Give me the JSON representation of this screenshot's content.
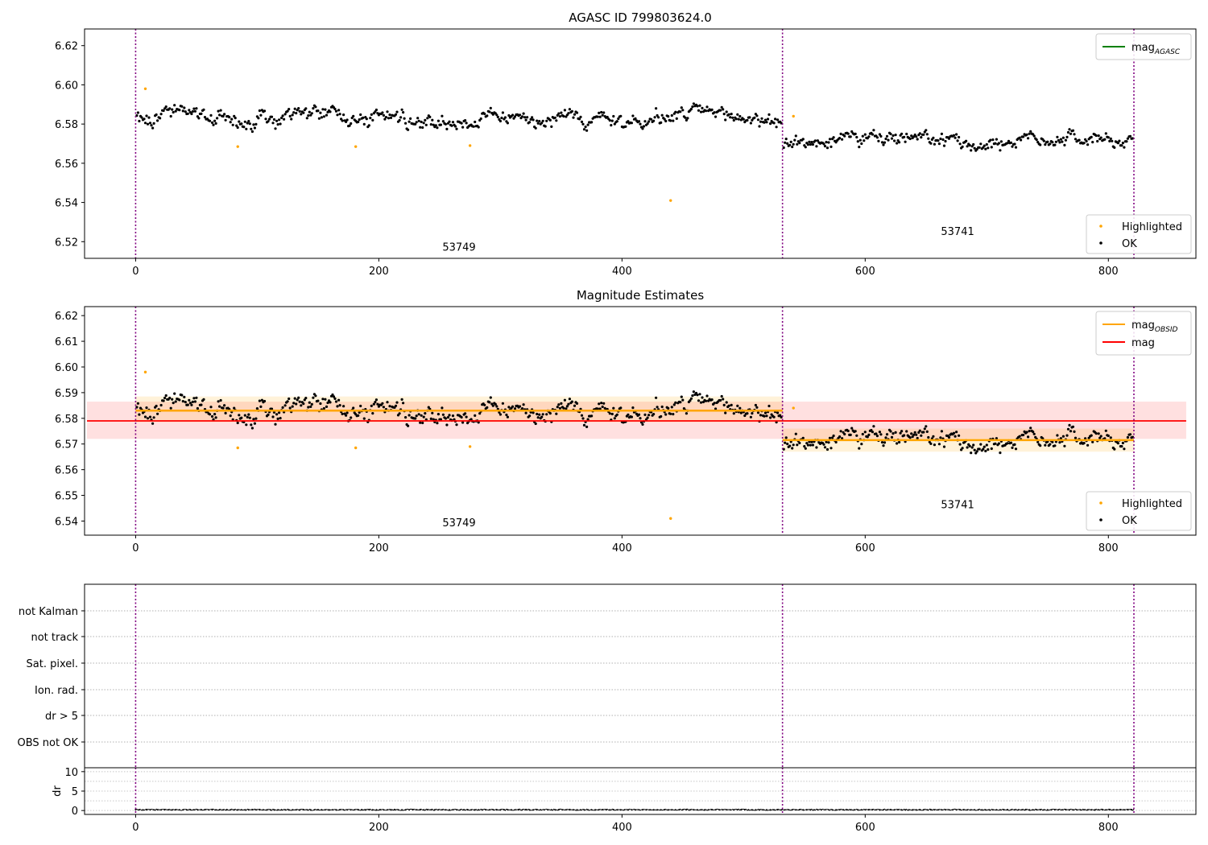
{
  "chart_data": [
    {
      "type": "scatter",
      "title": "AGASC ID 799803624.0",
      "xlim": [
        -42,
        872
      ],
      "ylim": [
        6.5115,
        6.6285
      ],
      "xticks": [
        0,
        200,
        400,
        600,
        800
      ],
      "yticks": [
        6.52,
        6.54,
        6.56,
        6.58,
        6.6,
        6.62
      ],
      "vlines": [
        0,
        532,
        821
      ],
      "segment_labels": [
        {
          "text": "53749",
          "x": 266,
          "y": 6.5155
        },
        {
          "text": "53741",
          "x": 676,
          "y": 6.5235
        }
      ],
      "legend_upper": [
        {
          "label": "mag",
          "sub": "AGASC",
          "color": "#008000"
        }
      ],
      "legend_lower": [
        {
          "label": "Highlighted",
          "color": "#ffa500"
        },
        {
          "label": "OK",
          "color": "#000000"
        }
      ],
      "highlighted": [
        [
          8,
          6.598
        ],
        [
          84,
          6.5685
        ],
        [
          181,
          6.5685
        ],
        [
          275,
          6.569
        ],
        [
          440,
          6.541
        ],
        [
          541,
          6.584
        ]
      ],
      "segments": [
        {
          "x0": 0,
          "x1": 532,
          "mean": 6.583,
          "amp": 0.005,
          "noise": 0.0035
        },
        {
          "x0": 532,
          "x1": 821,
          "mean": 6.5715,
          "amp": 0.004,
          "noise": 0.0035
        }
      ]
    },
    {
      "type": "scatter",
      "title": "Magnitude Estimates",
      "xlim": [
        -42,
        872
      ],
      "ylim": [
        6.5345,
        6.6235
      ],
      "xticks": [
        0,
        200,
        400,
        600,
        800
      ],
      "yticks": [
        6.54,
        6.55,
        6.56,
        6.57,
        6.58,
        6.59,
        6.6,
        6.61,
        6.62
      ],
      "vlines": [
        0,
        532,
        821
      ],
      "segment_labels": [
        {
          "text": "53749",
          "x": 266,
          "y": 6.538
        },
        {
          "text": "53741",
          "x": 676,
          "y": 6.545
        }
      ],
      "legend_upper": [
        {
          "label": "mag",
          "sub": "OBSID",
          "color": "#ffa500"
        },
        {
          "label": "mag",
          "sub": "",
          "color": "#ff0000"
        }
      ],
      "legend_lower": [
        {
          "label": "Highlighted",
          "color": "#ffa500"
        },
        {
          "label": "OK",
          "color": "#000000"
        }
      ],
      "mag_line": {
        "x0": -40,
        "x1": 864,
        "y": 6.579,
        "band": [
          6.572,
          6.5865
        ],
        "color": "#ff0000"
      },
      "obsid_lines": [
        {
          "x0": 0,
          "x1": 532,
          "y": 6.583,
          "band": [
            6.5785,
            6.5885
          ]
        },
        {
          "x0": 532,
          "x1": 821,
          "y": 6.5715,
          "band": [
            6.567,
            6.576
          ]
        }
      ],
      "highlighted": [
        [
          8,
          6.598
        ],
        [
          84,
          6.5685
        ],
        [
          181,
          6.5685
        ],
        [
          275,
          6.569
        ],
        [
          440,
          6.541
        ],
        [
          541,
          6.584
        ]
      ],
      "segments": [
        {
          "x0": 0,
          "x1": 532,
          "mean": 6.583,
          "amp": 0.005,
          "noise": 0.0035
        },
        {
          "x0": 532,
          "x1": 821,
          "mean": 6.5715,
          "amp": 0.004,
          "noise": 0.0035
        }
      ]
    },
    {
      "type": "table",
      "flag_labels": [
        "not Kalman",
        "not track",
        "Sat. pixel.",
        "Ion. rad.",
        "dr > 5",
        "OBS not OK"
      ],
      "vlines": [
        0,
        532,
        821
      ],
      "xlim": [
        -42,
        872
      ]
    },
    {
      "type": "line",
      "ylabel": "dr",
      "ylim": [
        -1,
        11
      ],
      "yticks": [
        0,
        5,
        10
      ],
      "xticks": [
        0,
        200,
        400,
        600,
        800
      ],
      "xlim": [
        -42,
        872
      ],
      "vlines": [
        0,
        532,
        821
      ],
      "dr_level": 0.2
    }
  ]
}
